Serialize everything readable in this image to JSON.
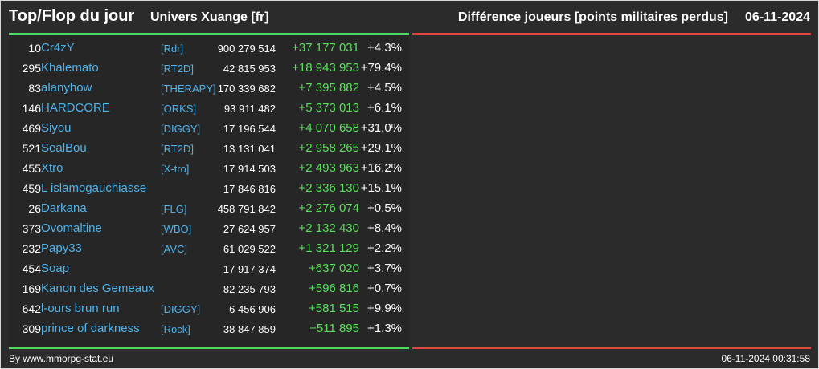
{
  "header": {
    "title": "Top/Flop du jour",
    "server": "Univers Xuange [fr]",
    "metric": "Différence joueurs [points militaires perdus]",
    "date": "06-11-2024"
  },
  "colors": {
    "positive": "#5be05b",
    "link": "#4fb3ea",
    "top_bar": "#4cd964",
    "flop_bar": "#e0483e"
  },
  "rows": [
    {
      "rank": "10",
      "name": "Cr4zY",
      "alliance": "[Rdr]",
      "points": "900 279 514",
      "diff": "+37 177 031",
      "pct": "+4.3%"
    },
    {
      "rank": "295",
      "name": "Khalemato",
      "alliance": "[RT2D]",
      "points": "42 815 953",
      "diff": "+18 943 953",
      "pct": "+79.4%"
    },
    {
      "rank": "83",
      "name": "alanyhow",
      "alliance": "[THERAPY]",
      "points": "170 339 682",
      "diff": "+7 395 882",
      "pct": "+4.5%"
    },
    {
      "rank": "146",
      "name": "HARDCORE",
      "alliance": "[ORKS]",
      "points": "93 911 482",
      "diff": "+5 373 013",
      "pct": "+6.1%"
    },
    {
      "rank": "469",
      "name": "Siyou",
      "alliance": "[DIGGY]",
      "points": "17 196 544",
      "diff": "+4 070 658",
      "pct": "+31.0%"
    },
    {
      "rank": "521",
      "name": "SealBou",
      "alliance": "[RT2D]",
      "points": "13 131 041",
      "diff": "+2 958 265",
      "pct": "+29.1%"
    },
    {
      "rank": "455",
      "name": "Xtro",
      "alliance": "[X-tro]",
      "points": "17 914 503",
      "diff": "+2 493 963",
      "pct": "+16.2%"
    },
    {
      "rank": "459",
      "name": "L islamogauchiasse",
      "alliance": "",
      "points": "17 846 816",
      "diff": "+2 336 130",
      "pct": "+15.1%"
    },
    {
      "rank": "26",
      "name": "Darkana",
      "alliance": "[FLG]",
      "points": "458 791 842",
      "diff": "+2 276 074",
      "pct": "+0.5%"
    },
    {
      "rank": "373",
      "name": "Ovomaltine",
      "alliance": "[WBO]",
      "points": "27 624 957",
      "diff": "+2 132 430",
      "pct": "+8.4%"
    },
    {
      "rank": "232",
      "name": "Papy33",
      "alliance": "[AVC]",
      "points": "61 029 522",
      "diff": "+1 321 129",
      "pct": "+2.2%"
    },
    {
      "rank": "454",
      "name": "Soap",
      "alliance": "",
      "points": "17 917 374",
      "diff": "+637 020",
      "pct": "+3.7%"
    },
    {
      "rank": "169",
      "name": "Kanon des Gemeaux",
      "alliance": "",
      "points": "82 235 793",
      "diff": "+596 816",
      "pct": "+0.7%"
    },
    {
      "rank": "642",
      "name": "l-ours brun run",
      "alliance": "[DIGGY]",
      "points": "6 456 906",
      "diff": "+581 515",
      "pct": "+9.9%"
    },
    {
      "rank": "309",
      "name": "prince of darkness",
      "alliance": "[Rock]",
      "points": "38 847 859",
      "diff": "+511 895",
      "pct": "+1.3%"
    }
  ],
  "footer": {
    "credit": "By www.mmorpg-stat.eu",
    "timestamp": "06-11-2024 00:31:58"
  }
}
